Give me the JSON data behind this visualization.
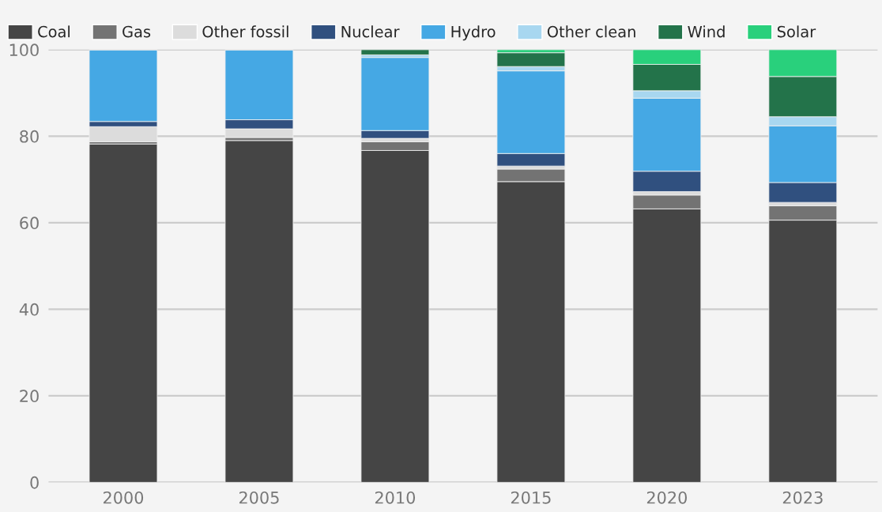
{
  "chart_data": {
    "type": "bar",
    "stacked": true,
    "categories": [
      "2000",
      "2005",
      "2010",
      "2015",
      "2020",
      "2023"
    ],
    "series": [
      {
        "name": "Coal",
        "color": "#454545",
        "values": [
          78.2,
          79.0,
          76.7,
          69.5,
          63.2,
          60.6
        ]
      },
      {
        "name": "Gas",
        "color": "#737373",
        "values": [
          0.5,
          0.7,
          2.0,
          2.9,
          3.2,
          3.3
        ]
      },
      {
        "name": "Other fossil",
        "color": "#dcdcdc",
        "values": [
          3.5,
          2.0,
          0.8,
          0.7,
          0.8,
          0.8
        ]
      },
      {
        "name": "Nuclear",
        "color": "#30507f",
        "values": [
          1.2,
          2.1,
          1.8,
          2.9,
          4.7,
          4.6
        ]
      },
      {
        "name": "Hydro",
        "color": "#45a8e4",
        "values": [
          16.5,
          16.1,
          16.9,
          19.1,
          16.9,
          13.1
        ]
      },
      {
        "name": "Other clean",
        "color": "#a8d7f0",
        "values": [
          null,
          null,
          0.6,
          1.0,
          1.7,
          2.1
        ]
      },
      {
        "name": "Wind",
        "color": "#23734a",
        "values": [
          null,
          null,
          1.2,
          3.2,
          6.1,
          9.3
        ]
      },
      {
        "name": "Solar",
        "color": "#29d07c",
        "values": [
          null,
          null,
          null,
          0.7,
          3.4,
          6.2
        ]
      }
    ],
    "ylim": [
      0,
      100
    ],
    "yticks": [
      0,
      20,
      40,
      60,
      80,
      100
    ],
    "grid": "y",
    "legend": "top left"
  }
}
